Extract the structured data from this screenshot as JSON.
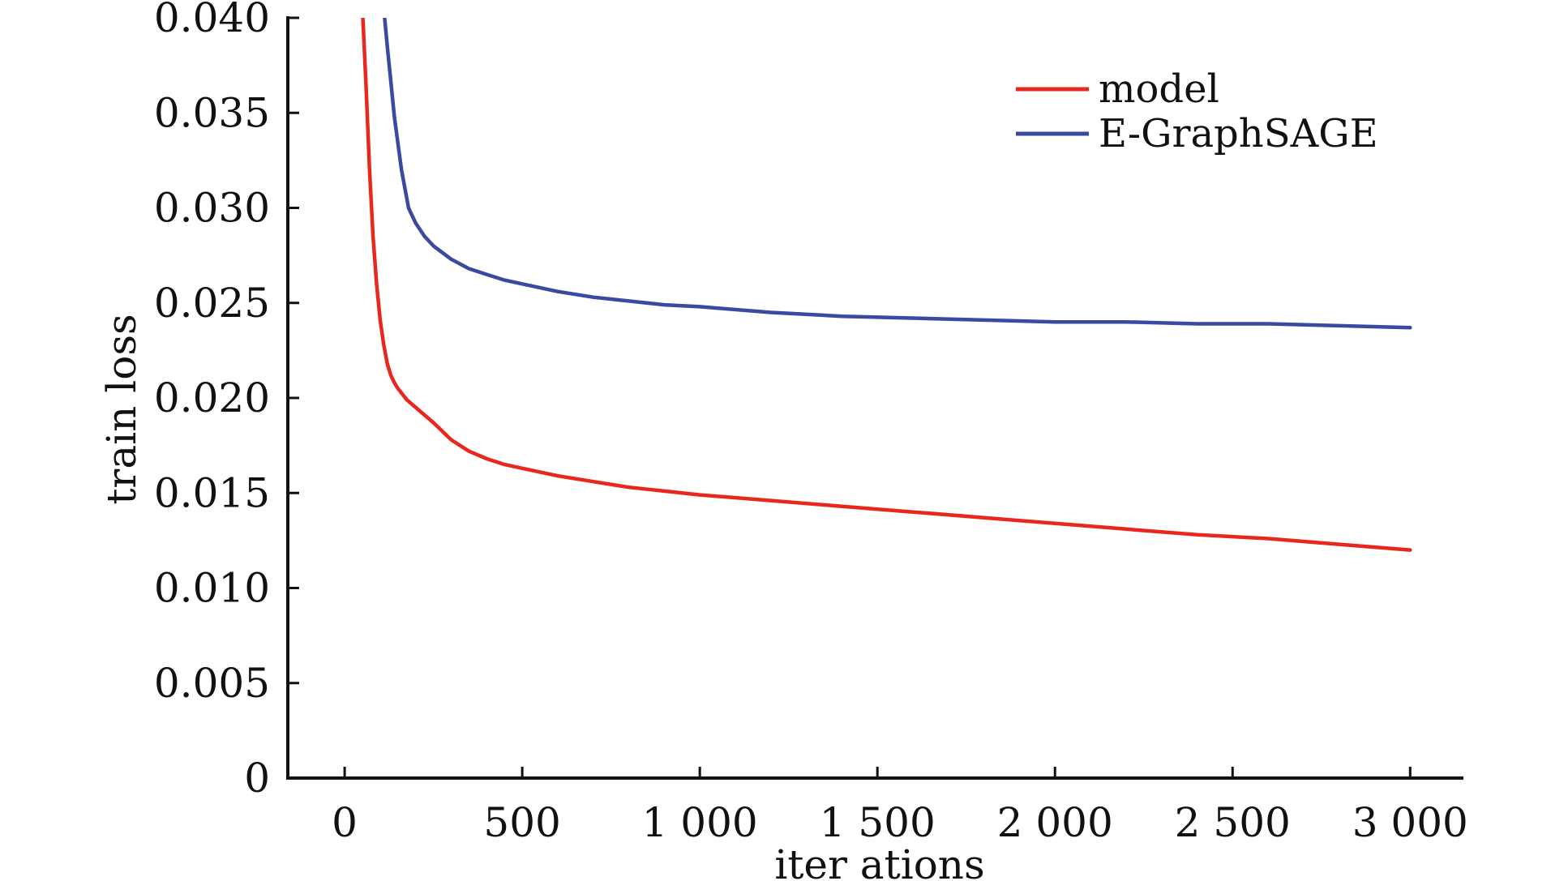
{
  "chart_data": {
    "type": "line",
    "title": "",
    "xlabel": "iter ations",
    "ylabel": "train loss",
    "xlim": [
      -160,
      3150
    ],
    "ylim": [
      0,
      0.04
    ],
    "xticks": [
      0,
      500,
      1000,
      1500,
      2000,
      2500,
      3000
    ],
    "xtick_labels": [
      "0",
      "500",
      "1 000",
      "1 500",
      "2 000",
      "2 500",
      "3 000"
    ],
    "yticks": [
      0,
      0.005,
      0.01,
      0.015,
      0.02,
      0.025,
      0.03,
      0.035,
      0.04
    ],
    "ytick_labels": [
      "0",
      "0.005",
      "0.010",
      "0.015",
      "0.020",
      "0.025",
      "0.030",
      "0.035",
      "0.040"
    ],
    "grid": false,
    "legend_position": "top-right",
    "series": [
      {
        "name": "model",
        "color": "#e8281e",
        "x": [
          50,
          60,
          70,
          80,
          90,
          100,
          110,
          120,
          130,
          140,
          150,
          175,
          200,
          250,
          300,
          350,
          400,
          450,
          500,
          600,
          700,
          800,
          900,
          1000,
          1200,
          1400,
          1600,
          1800,
          2000,
          2200,
          2400,
          2600,
          2800,
          3000
        ],
        "y": [
          0.0405,
          0.0365,
          0.032,
          0.0285,
          0.026,
          0.0241,
          0.0228,
          0.0218,
          0.0212,
          0.0208,
          0.0205,
          0.0199,
          0.0195,
          0.0187,
          0.0178,
          0.0172,
          0.0168,
          0.0165,
          0.0163,
          0.0159,
          0.0156,
          0.0153,
          0.0151,
          0.0149,
          0.0146,
          0.0143,
          0.014,
          0.0137,
          0.0134,
          0.0131,
          0.0128,
          0.0126,
          0.0123,
          0.012
        ]
      },
      {
        "name": "E-GraphSAGE",
        "color": "#3a4aa0",
        "x": [
          110,
          120,
          140,
          160,
          180,
          200,
          225,
          250,
          300,
          350,
          400,
          450,
          500,
          600,
          700,
          800,
          900,
          1000,
          1200,
          1400,
          1600,
          1800,
          2000,
          2200,
          2400,
          2600,
          2800,
          3000
        ],
        "y": [
          0.0405,
          0.0385,
          0.0348,
          0.032,
          0.03,
          0.0292,
          0.0285,
          0.028,
          0.0273,
          0.0268,
          0.0265,
          0.0262,
          0.026,
          0.0256,
          0.0253,
          0.0251,
          0.0249,
          0.0248,
          0.0245,
          0.0243,
          0.0242,
          0.0241,
          0.024,
          0.024,
          0.0239,
          0.0239,
          0.0238,
          0.0237
        ]
      }
    ]
  }
}
